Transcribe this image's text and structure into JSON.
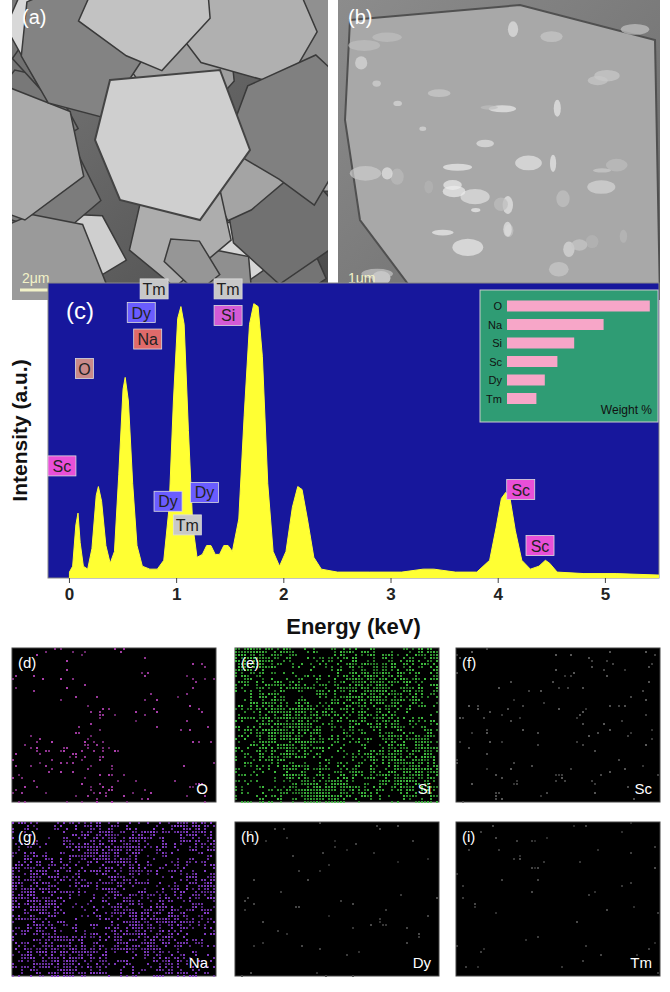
{
  "panels": {
    "sem": [
      {
        "label": "(a)",
        "scale_bar": "2μm"
      },
      {
        "label": "(b)",
        "scale_bar": "1μm"
      }
    ],
    "maps": [
      {
        "label": "(d)",
        "element": "O",
        "color": "#b040b0"
      },
      {
        "label": "(e)",
        "element": "Si",
        "color": "#3fbf3f"
      },
      {
        "label": "(f)",
        "element": "Sc",
        "color": "#5a5a5a"
      },
      {
        "label": "(g)",
        "element": "Na",
        "color": "#8a3fd0"
      },
      {
        "label": "(h)",
        "element": "Dy",
        "color": "#4a4a4a"
      },
      {
        "label": "(i)",
        "element": "Tm",
        "color": "#4a4a4a"
      }
    ]
  },
  "chart_data": [
    {
      "type": "area",
      "title": "(c)",
      "x_label": "Energy (keV)",
      "y_label": "Intensity (a.u.)",
      "color": "#ffff33",
      "grid": false,
      "tick_labels": "x",
      "xlim": [
        -0.2,
        5.5
      ],
      "xticks": [
        0,
        1,
        2,
        3,
        4,
        5
      ],
      "ylim": [
        0,
        100
      ],
      "x": [
        0.0,
        0.03,
        0.06,
        0.08,
        0.1,
        0.13,
        0.17,
        0.21,
        0.25,
        0.27,
        0.3,
        0.34,
        0.38,
        0.42,
        0.46,
        0.5,
        0.52,
        0.55,
        0.59,
        0.63,
        0.68,
        0.75,
        0.82,
        0.88,
        0.93,
        0.97,
        1.01,
        1.04,
        1.07,
        1.11,
        1.15,
        1.19,
        1.24,
        1.28,
        1.32,
        1.36,
        1.4,
        1.44,
        1.48,
        1.52,
        1.58,
        1.63,
        1.68,
        1.72,
        1.76,
        1.8,
        1.85,
        1.9,
        1.96,
        2.02,
        2.08,
        2.13,
        2.17,
        2.22,
        2.28,
        2.35,
        2.5,
        2.8,
        3.1,
        3.3,
        3.4,
        3.6,
        3.8,
        3.92,
        3.98,
        4.03,
        4.07,
        4.11,
        4.16,
        4.22,
        4.3,
        4.38,
        4.44,
        4.48,
        4.55,
        4.8,
        5.1,
        5.5
      ],
      "values": [
        2,
        4,
        18,
        22,
        12,
        4,
        3,
        10,
        28,
        31,
        26,
        11,
        5,
        9,
        35,
        64,
        68,
        60,
        32,
        11,
        4,
        3,
        3,
        6,
        24,
        60,
        88,
        92,
        86,
        50,
        18,
        7,
        8,
        11,
        11,
        8,
        8,
        11,
        11,
        9,
        20,
        55,
        86,
        93,
        92,
        75,
        32,
        9,
        4,
        9,
        24,
        31,
        30,
        20,
        7,
        3,
        2,
        2,
        2,
        3,
        3,
        2,
        2,
        6,
        17,
        27,
        29,
        27,
        16,
        6,
        3,
        4,
        6,
        5,
        2,
        1.5,
        1.5,
        1
      ],
      "annotations": [
        {
          "text": "Sc",
          "x": -0.07,
          "y": 38,
          "color": "#e94fd8"
        },
        {
          "text": "O",
          "x": 0.14,
          "y": 71,
          "color": "#c98a8a"
        },
        {
          "text": "Tm",
          "x": 0.79,
          "y": 98,
          "color": "#c8c8c8"
        },
        {
          "text": "Dy",
          "x": 0.67,
          "y": 90,
          "color": "#6a5cff"
        },
        {
          "text": "Na",
          "x": 0.73,
          "y": 81,
          "color": "#e06a6a"
        },
        {
          "text": "Tm",
          "x": 1.48,
          "y": 98,
          "color": "#c8c8c8"
        },
        {
          "text": "Si",
          "x": 1.48,
          "y": 89,
          "color": "#d35ad6"
        },
        {
          "text": "Dy",
          "x": 0.92,
          "y": 26,
          "color": "#6a5cff"
        },
        {
          "text": "Dy",
          "x": 1.26,
          "y": 29,
          "color": "#6a5cff"
        },
        {
          "text": "Tm",
          "x": 1.1,
          "y": 18,
          "color": "#c8c8c8"
        },
        {
          "text": "Sc",
          "x": 4.21,
          "y": 30,
          "color": "#e94fd8"
        },
        {
          "text": "Sc",
          "x": 4.39,
          "y": 11,
          "color": "#e94fd8"
        }
      ]
    },
    {
      "type": "bar",
      "orientation": "horizontal",
      "x_label": "Weight %",
      "color": "#f7a6c8",
      "tick_labels": false,
      "xlim": [
        0,
        35
      ],
      "categories": [
        "O",
        "Na",
        "Si",
        "Sc",
        "Dy",
        "Tm"
      ],
      "values": [
        34,
        23,
        16,
        12,
        9,
        7
      ]
    }
  ]
}
